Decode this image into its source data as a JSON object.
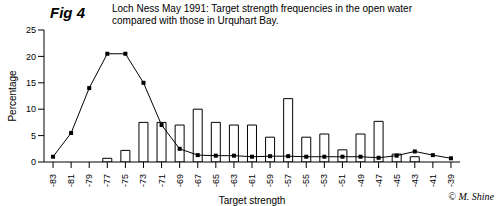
{
  "chart_data": {
    "type": "bar",
    "title": "Fig 4",
    "subtitle": "Loch Ness May 1991:  Target strength frequencies in the open water compared with those in Urquhart Bay.",
    "x_label": "Target strength",
    "y_label": "Percentage",
    "annotation": "© M. Shine",
    "categories": [
      "-83",
      "-81",
      "-79",
      "-77",
      "-75",
      "-73",
      "-71",
      "-69",
      "-67",
      "-65",
      "-63",
      "-61",
      "-59",
      "-57",
      "-55",
      "-53",
      "-51",
      "-49",
      "-47",
      "-45",
      "-43",
      "-41",
      "-39"
    ],
    "series": [
      {
        "type": "bar",
        "color": "#ffffff",
        "values": [
          0,
          0,
          0,
          0.7,
          2.2,
          7.5,
          7.5,
          7,
          10,
          7.5,
          7,
          7,
          4.7,
          12,
          4.7,
          5.3,
          2.3,
          5.3,
          7.7,
          1.5,
          1,
          0,
          0
        ]
      },
      {
        "type": "line",
        "color": "#000000",
        "marker": "square",
        "values": [
          1,
          5.5,
          14,
          20.5,
          20.5,
          15,
          7,
          2.5,
          1.3,
          1.2,
          1.2,
          1,
          1.1,
          1.1,
          1,
          1,
          1,
          1,
          0.8,
          1.2,
          2,
          1.3,
          0.7
        ]
      }
    ],
    "ylim": [
      0,
      25
    ],
    "yticks": [
      0,
      5,
      10,
      15,
      20,
      25
    ],
    "grid": false
  }
}
